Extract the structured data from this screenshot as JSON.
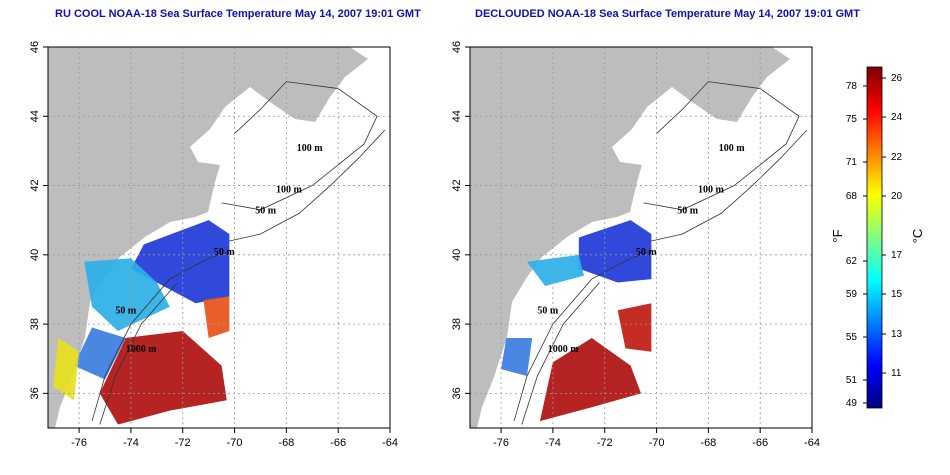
{
  "panels": [
    {
      "title": "RU COOL NOAA-18 Sea Surface Temperature May 14, 2007 19:01 GMT",
      "x_ticks": [
        "-76",
        "-74",
        "-72",
        "-70",
        "-68",
        "-66",
        "-64"
      ],
      "y_ticks": [
        "36",
        "38",
        "40",
        "42",
        "44",
        "46"
      ],
      "contour_labels": [
        "100 m",
        "100 m",
        "50 m",
        "50 m",
        "50 m",
        "1000 m"
      ],
      "variant": "raw"
    },
    {
      "title": "DECLOUDED NOAA-18 Sea Surface Temperature May 14, 2007 19:01 GMT",
      "x_ticks": [
        "-76",
        "-74",
        "-72",
        "-70",
        "-68",
        "-66",
        "-64"
      ],
      "y_ticks": [
        "36",
        "38",
        "40",
        "42",
        "44",
        "46"
      ],
      "contour_labels": [
        "100 m",
        "100 m",
        "50 m",
        "50 m",
        "50 m",
        "1000 m"
      ],
      "variant": "declouded"
    }
  ],
  "colorbar": {
    "fahrenheit_ticks": [
      "78",
      "75",
      "71",
      "68",
      "62",
      "59",
      "55",
      "51",
      "49"
    ],
    "celsius_ticks": [
      "26",
      "24",
      "22",
      "20",
      "17",
      "15",
      "13",
      "11"
    ],
    "fahrenheit_unit": "°F",
    "celsius_unit": "°C",
    "colors": [
      "#00007f",
      "#0000ff",
      "#007fff",
      "#00ffff",
      "#7fff7f",
      "#ffff00",
      "#ff7f00",
      "#ff0000",
      "#7f0000"
    ]
  }
}
